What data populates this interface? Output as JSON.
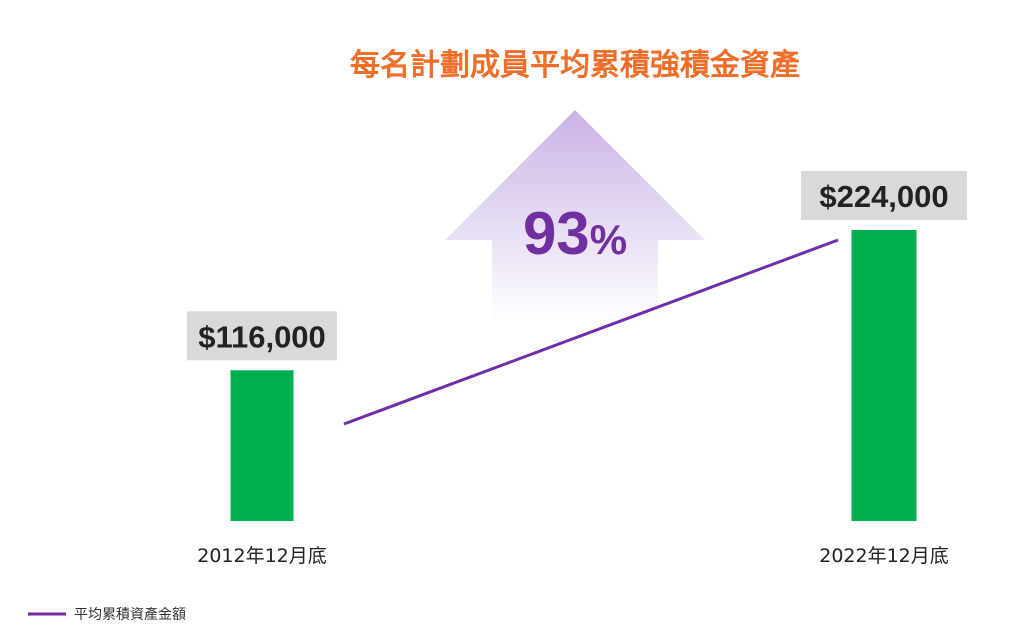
{
  "chart_data": {
    "type": "bar",
    "title": "每名計劃成員平均累積強積金資產",
    "categories": [
      "2012年12月底",
      "2022年12月底"
    ],
    "values": [
      116000,
      224000
    ],
    "value_labels": [
      "$116,000",
      "$224,000"
    ],
    "growth": {
      "value": "93",
      "unit": "%"
    },
    "legend": [
      {
        "label": "平均累積資產金額",
        "color": "#6f2da8"
      }
    ],
    "legend_position": "bottom-left",
    "xlabel": "",
    "ylabel": "",
    "ylim": [
      0,
      224000
    ],
    "grid": false
  },
  "colors": {
    "bar": "#00b050",
    "trend_line": "#6f2da8",
    "title": "#ee6e2a",
    "growth": "#7030a0",
    "label_bg": "#d9d9d9"
  }
}
